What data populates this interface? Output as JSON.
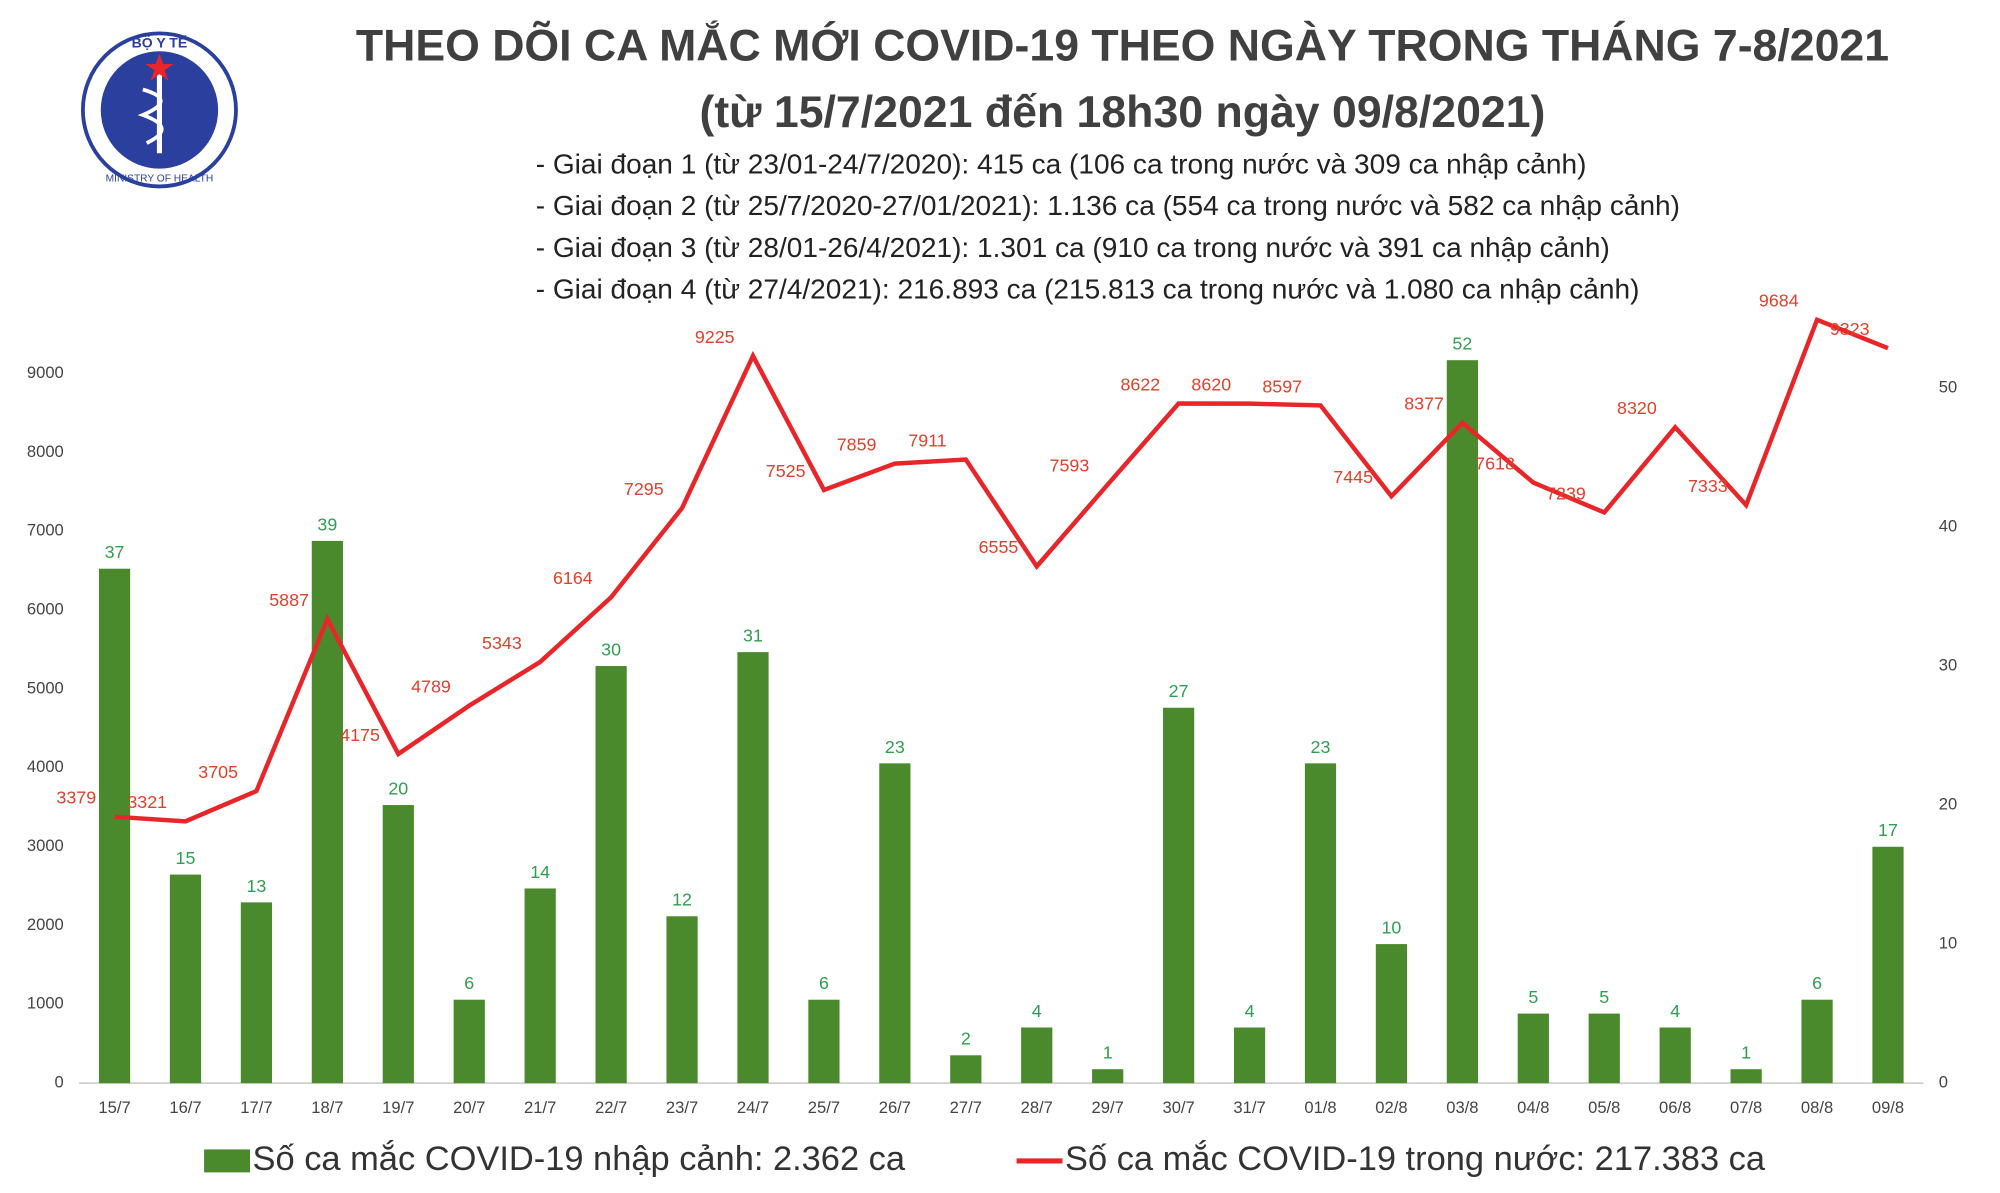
{
  "logo": {
    "top": "BỘ Y TẾ",
    "bottom": "MINISTRY OF HEALTH"
  },
  "chart_data": {
    "type": "bar",
    "title": "THEO DÕI CA MẮC MỚI COVID-19 THEO NGÀY TRONG THÁNG 7-8/2021",
    "subtitle": "(từ 15/7/2021 đến 18h30 ngày 09/8/2021)",
    "notes": [
      "- Giai đoạn 1 (từ 23/01-24/7/2020): 415 ca (106 ca trong nước và 309 ca nhập cảnh)",
      "- Giai đoạn 2 (từ 25/7/2020-27/01/2021): 1.136 ca (554 ca trong nước và 582 ca nhập cảnh)",
      "- Giai đoạn 3 (từ 28/01-26/4/2021): 1.301 ca (910 ca trong nước và 391 ca nhập cảnh)",
      "- Giai đoạn 4 (từ 27/4/2021): 216.893 ca (215.813 ca trong nước và 1.080 ca nhập cảnh)"
    ],
    "categories": [
      "15/7",
      "16/7",
      "17/7",
      "18/7",
      "19/7",
      "20/7",
      "21/7",
      "22/7",
      "23/7",
      "24/7",
      "25/7",
      "26/7",
      "27/7",
      "28/7",
      "29/7",
      "30/7",
      "31/7",
      "01/8",
      "02/8",
      "03/8",
      "04/8",
      "05/8",
      "06/8",
      "07/8",
      "08/8",
      "09/8"
    ],
    "series": [
      {
        "name": "Số ca mắc COVID-19 nhập cảnh: 2.362 ca",
        "type": "bar",
        "axis": "y2",
        "color": "#4a8a2c",
        "label_color": "#2f9e50",
        "values": [
          37,
          15,
          13,
          39,
          20,
          6,
          14,
          30,
          12,
          31,
          6,
          23,
          2,
          4,
          1,
          27,
          4,
          23,
          10,
          52,
          5,
          5,
          4,
          1,
          6,
          17
        ]
      },
      {
        "name": "Số ca mắc COVID-19 trong nước: 217.383 ca",
        "type": "line",
        "color": "#e8262a",
        "label_color": "#e0402c",
        "values": [
          3379,
          3321,
          3705,
          5887,
          4175,
          4789,
          5343,
          6164,
          7295,
          9225,
          7525,
          7859,
          7911,
          6555,
          7593,
          8622,
          8620,
          8597,
          7445,
          8377,
          7618,
          7239,
          8320,
          7333,
          9684,
          9323
        ]
      }
    ],
    "ylim": [
      0,
      10000
    ],
    "yticks": [
      0,
      1000,
      2000,
      3000,
      4000,
      5000,
      6000,
      7000,
      8000,
      9000
    ],
    "y2lim": [
      0,
      56.7
    ],
    "y2ticks": [
      0,
      10,
      20,
      30,
      40,
      50
    ],
    "grid": false
  }
}
